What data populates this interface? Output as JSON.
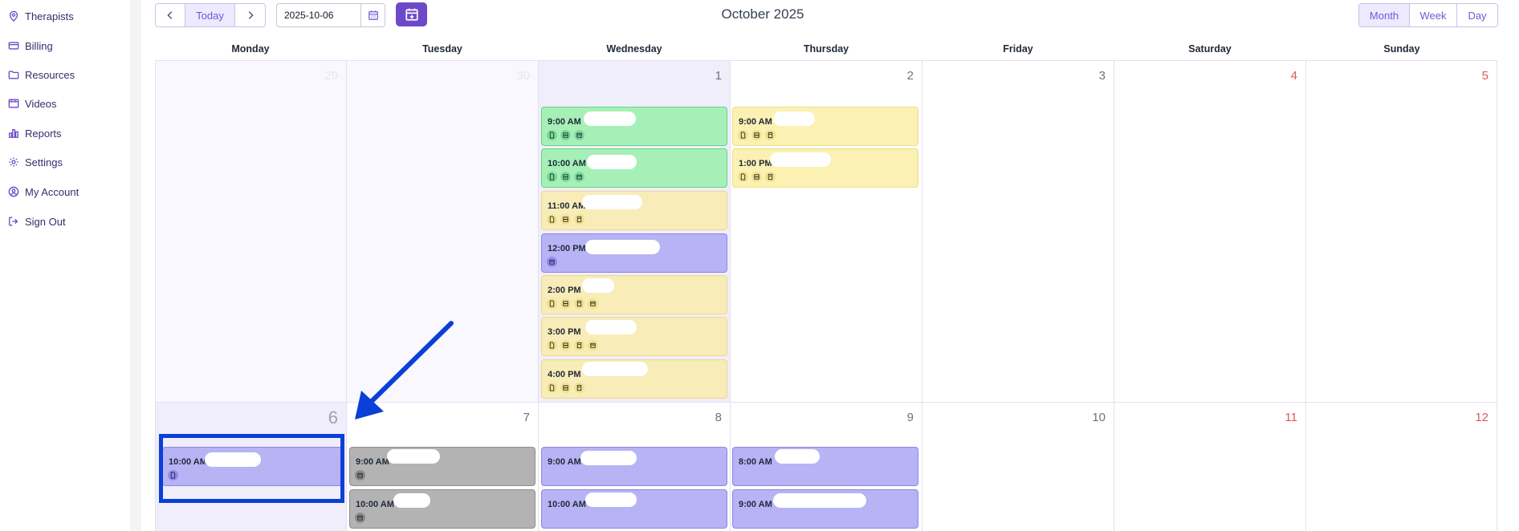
{
  "sidebar": {
    "items": [
      {
        "label": "Therapists",
        "icon": "map-pin-icon"
      },
      {
        "label": "Billing",
        "icon": "credit-card-icon"
      },
      {
        "label": "Resources",
        "icon": "folder-icon"
      },
      {
        "label": "Videos",
        "icon": "film-icon"
      },
      {
        "label": "Reports",
        "icon": "bar-chart-icon"
      },
      {
        "label": "Settings",
        "icon": "gear-icon"
      },
      {
        "label": "My Account",
        "icon": "user-circle-icon"
      },
      {
        "label": "Sign Out",
        "icon": "sign-out-icon"
      }
    ]
  },
  "toolbar": {
    "today_label": "Today",
    "date_value": "2025-10-06",
    "month_title": "October 2025",
    "views": [
      "Month",
      "Week",
      "Day"
    ],
    "active_view": "Month"
  },
  "calendar": {
    "weekdays": [
      "Monday",
      "Tuesday",
      "Wednesday",
      "Thursday",
      "Friday",
      "Saturday",
      "Sunday"
    ],
    "week1_days": [
      "29",
      "30",
      "1",
      "2",
      "3",
      "4",
      "5"
    ],
    "week2_days": [
      "6",
      "7",
      "8",
      "9",
      "10",
      "11",
      "12"
    ],
    "events": {
      "wed1": [
        "9:00 AM",
        "10:00 AM",
        "11:00 AM",
        "12:00 PM",
        "2:00 PM",
        "3:00 PM",
        "4:00 PM"
      ],
      "thu2": [
        "9:00 AM",
        "1:00 PM"
      ],
      "mon6": [
        "10:00 AM"
      ],
      "tue7": [
        "9:00 AM",
        "10:00 AM"
      ],
      "wed8": [
        "9:00 AM",
        "10:00 AM"
      ],
      "thu9": [
        "8:00 AM",
        "9:00 AM"
      ]
    }
  },
  "colors": {
    "accent": "#6d49c9",
    "green_event": "#a6f0b8",
    "yellow_event": "#fbf1b3",
    "purple_event": "#b7b3f5",
    "gray_event": "#b3b3b3",
    "annotation_blue": "#0b3fd8",
    "weekend_number": "#dc5a5a"
  }
}
